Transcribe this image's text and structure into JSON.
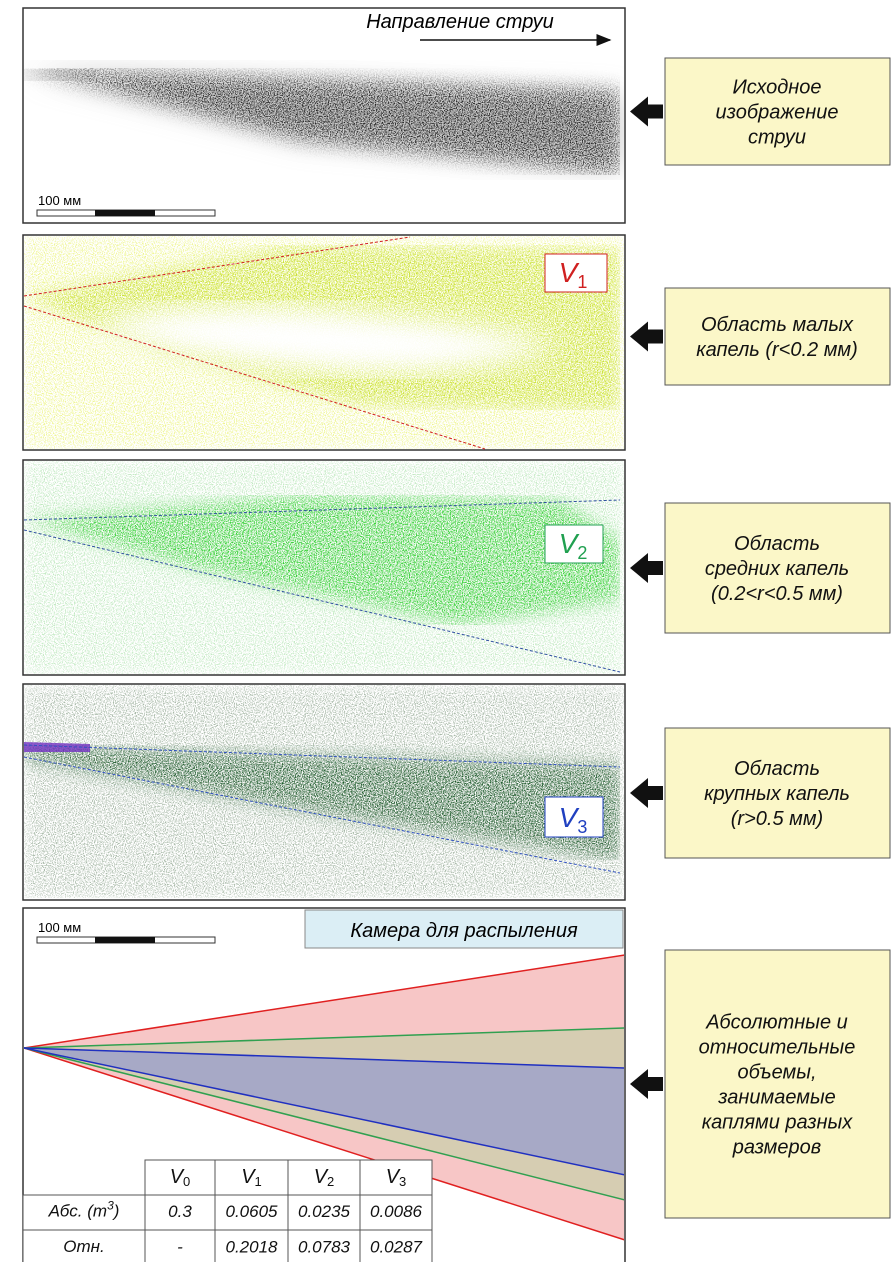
{
  "header": {
    "direction": "Направление струи",
    "scale": "100 мм"
  },
  "labels": [
    {
      "lines": [
        "Исходное",
        "изображение",
        "струи"
      ]
    },
    {
      "lines": [
        "Область малых",
        "капель (r<0.2 мм)"
      ]
    },
    {
      "lines": [
        "Область",
        "средних капель",
        "(0.2<r<0.5 мм)"
      ]
    },
    {
      "lines": [
        "Область",
        "крупных капель",
        "(r>0.5 мм)"
      ]
    },
    {
      "lines": [
        "Абсолютные и",
        "относительные",
        "объемы,",
        "занимаемые",
        "каплями разных",
        "размеров"
      ]
    }
  ],
  "volumes": [
    {
      "letter": "V",
      "sub": "1"
    },
    {
      "letter": "V",
      "sub": "2"
    },
    {
      "letter": "V",
      "sub": "3"
    }
  ],
  "chamber": {
    "title": "Камера для распыления",
    "scale": "100 мм"
  },
  "table": {
    "columns": [
      {
        "letter": "V",
        "sub": "0"
      },
      {
        "letter": "V",
        "sub": "1"
      },
      {
        "letter": "V",
        "sub": "2"
      },
      {
        "letter": "V",
        "sub": "3"
      }
    ],
    "rows": [
      {
        "label": {
          "main": "Абс. (m",
          "sup": "3",
          "end": ")"
        },
        "cells": [
          0.3,
          0.0605,
          0.0235,
          0.0086
        ]
      },
      {
        "label": {
          "main": "Отн."
        },
        "cells": [
          "-",
          0.2018,
          0.0783,
          0.0287
        ]
      }
    ]
  }
}
